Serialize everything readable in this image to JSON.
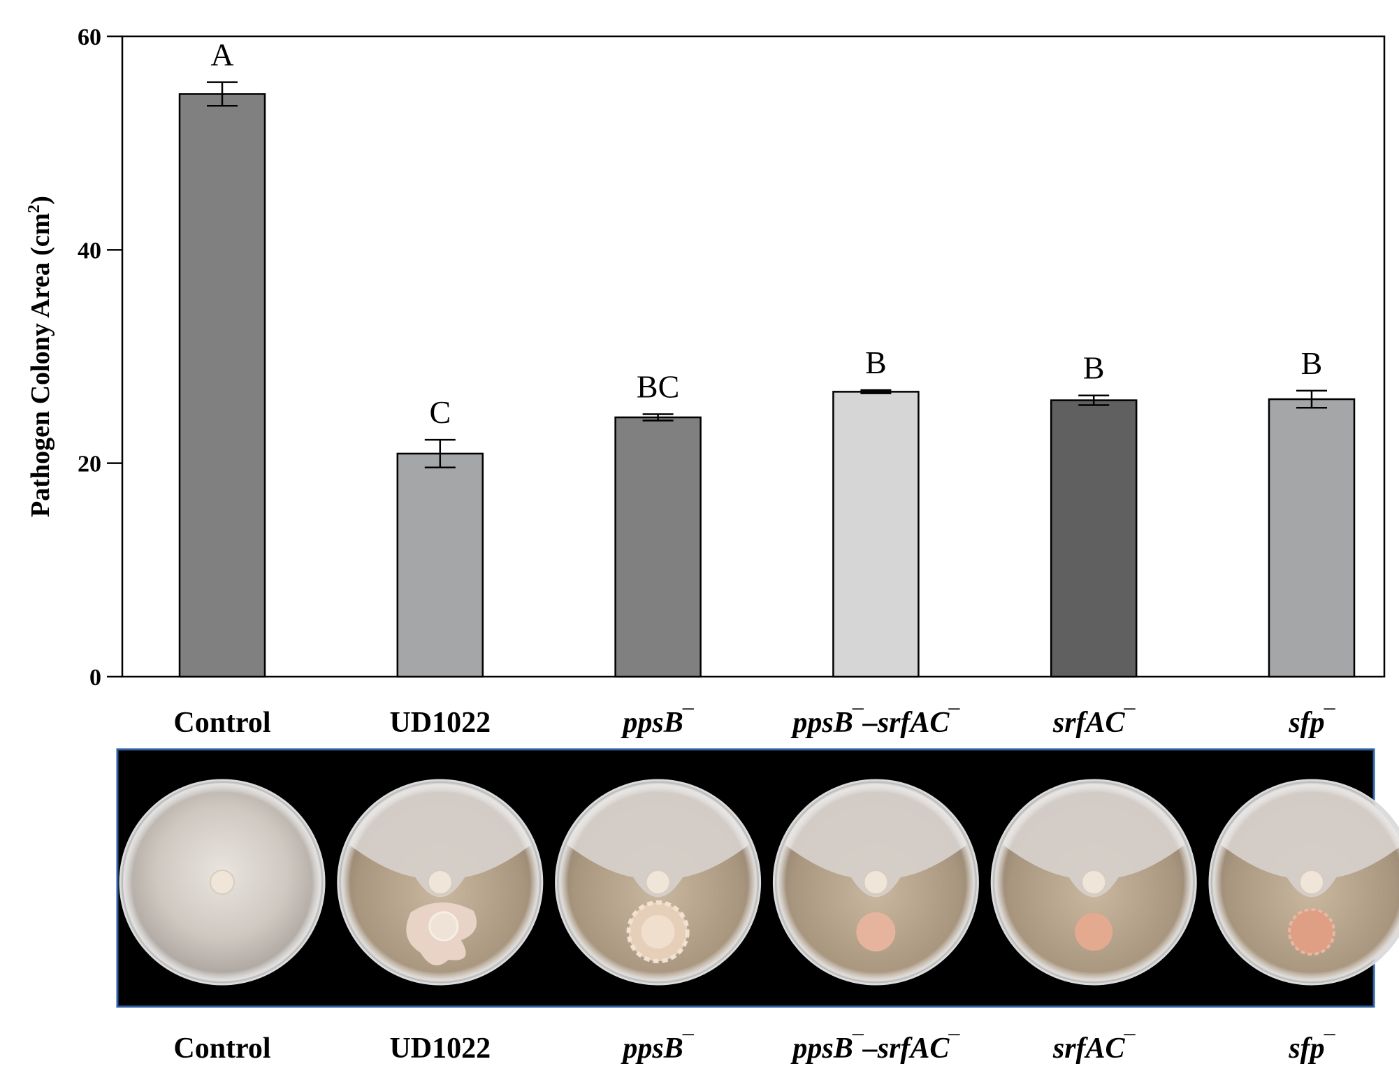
{
  "chart_data": {
    "type": "bar",
    "title": "",
    "xlabel": "",
    "ylabel": "Pathogen Colony Area (cm",
    "ylabel_superscript": "2",
    "ylabel_close": ")",
    "ylim": [
      0,
      60
    ],
    "yticks": [
      0,
      20,
      40,
      60
    ],
    "grid": false,
    "legend": "none",
    "categories": [
      {
        "base": "Control",
        "suffix": "",
        "italic": false
      },
      {
        "base": "UD1022",
        "suffix": "",
        "italic": false
      },
      {
        "base": "ppsB",
        "suffix": "‾",
        "italic": true
      },
      {
        "base": "ppsB‾–srfAC",
        "suffix": "‾",
        "italic": true
      },
      {
        "base": "srfAC",
        "suffix": "‾",
        "italic": true
      },
      {
        "base": "sfp",
        "suffix": "‾",
        "italic": true
      }
    ],
    "category_labels": [
      "Control",
      "UD1022",
      "ppsB‾",
      "ppsB‾–srfAC‾",
      "srfAC‾",
      "sfp‾"
    ],
    "values": [
      54.6,
      20.9,
      24.3,
      26.7,
      25.9,
      26.0
    ],
    "errors": [
      1.1,
      1.3,
      0.3,
      0.15,
      0.45,
      0.8
    ],
    "significance": [
      "A",
      "C",
      "BC",
      "B",
      "B",
      "B"
    ],
    "bar_colors": [
      "#808080",
      "#a5a6a8",
      "#808080",
      "#d6d6d6",
      "#606060",
      "#a5a6a8"
    ]
  },
  "photo_panel": {
    "description_labels": [
      "Control",
      "UD1022",
      "ppsB‾",
      "ppsB‾–srfAC‾",
      "srfAC‾",
      "sfp‾"
    ],
    "border_color": "#2e5fa0",
    "background_color": "#000000"
  }
}
